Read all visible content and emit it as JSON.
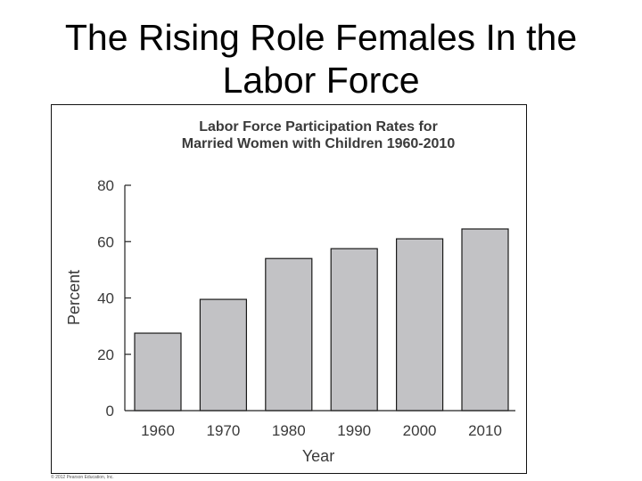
{
  "slide": {
    "title_line1": "The Rising Role Females In the",
    "title_line2": "Labor Force"
  },
  "credit": "© 2012 Pearson Education, Inc.",
  "colors": {
    "bar_fill": "#c2c2c5",
    "bar_stroke": "#1a1a1a",
    "text": "#3a3a3a"
  },
  "chart_data": {
    "type": "bar",
    "title": [
      "Labor Force Participation Rates for",
      "Married Women with Children 1960-2010"
    ],
    "xlabel": "Year",
    "ylabel": "Percent",
    "categories": [
      "1960",
      "1970",
      "1980",
      "1990",
      "2000",
      "2010"
    ],
    "values": [
      27.5,
      39.5,
      54,
      57.5,
      61,
      64.5
    ],
    "ylim": [
      0,
      80
    ],
    "yticks": [
      0,
      20,
      40,
      60,
      80
    ],
    "grid": false,
    "legend": "none"
  }
}
